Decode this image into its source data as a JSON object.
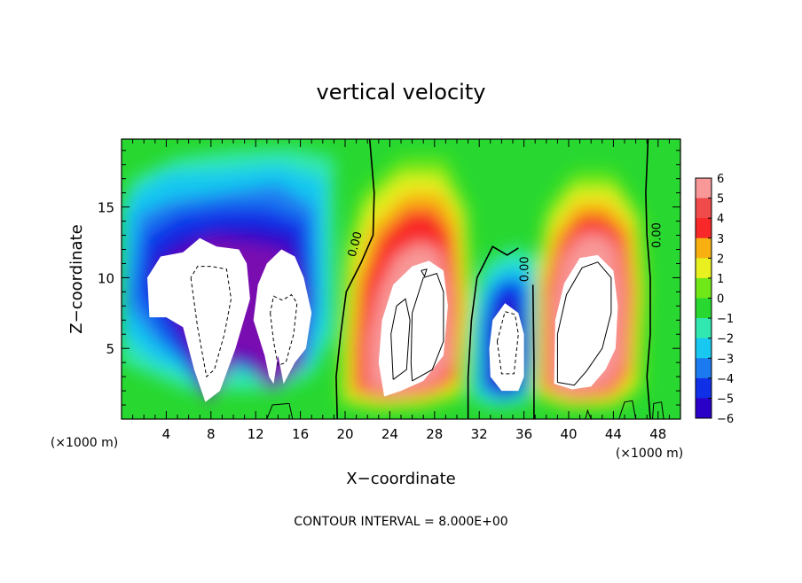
{
  "chart_data": {
    "type": "heatmap",
    "title": "vertical velocity",
    "xlabel": "X−coordinate",
    "ylabel": "Z−coordinate",
    "x_unit_left": "(×1000 m)",
    "x_unit_right": "(×1000 m)",
    "xlim": [
      0,
      50
    ],
    "ylim": [
      0,
      19.8
    ],
    "xticks": [
      4,
      8,
      12,
      16,
      20,
      24,
      28,
      32,
      36,
      40,
      44,
      48
    ],
    "yticks": [
      5,
      10,
      15
    ],
    "colorbar": {
      "ticks": [
        6,
        5,
        4,
        3,
        2,
        1,
        0,
        -1,
        -2,
        -3,
        -4,
        -5,
        -6
      ],
      "tick_labels": [
        "6",
        "5",
        "4",
        "3",
        "2",
        "1",
        "0",
        "−1",
        "−2",
        "−3",
        "−4",
        "−5",
        "−6"
      ],
      "range": [
        -6,
        6
      ]
    },
    "zero_contour_labels": [
      "0.00",
      "0.00",
      "0.00"
    ],
    "footer": "CONTOUR INTERVAL = 8.000E+00",
    "features": [
      {
        "kind": "downdraft",
        "cx": 9,
        "cz": 9,
        "peak": -8
      },
      {
        "kind": "downdraft",
        "cx": 14,
        "cz": 8,
        "peak": -8
      },
      {
        "kind": "updraft",
        "cx": 26.5,
        "cz": 8,
        "peak": 8
      },
      {
        "kind": "downdraft",
        "cx": 34.5,
        "cz": 5,
        "peak": -8
      },
      {
        "kind": "updraft",
        "cx": 41,
        "cz": 8.5,
        "peak": 8
      }
    ],
    "colors": {
      "-6": "#7a10b0",
      "-5": "#2a00c8",
      "-4": "#1030e8",
      "-3": "#1c7af0",
      "-2": "#18c8f0",
      "-1": "#30e8b0",
      "0": "#28d830",
      "1": "#70e818",
      "2": "#e8f020",
      "3": "#f8b010",
      "4": "#f82828",
      "5": "#f04a4a",
      "6": "#f89898"
    }
  }
}
